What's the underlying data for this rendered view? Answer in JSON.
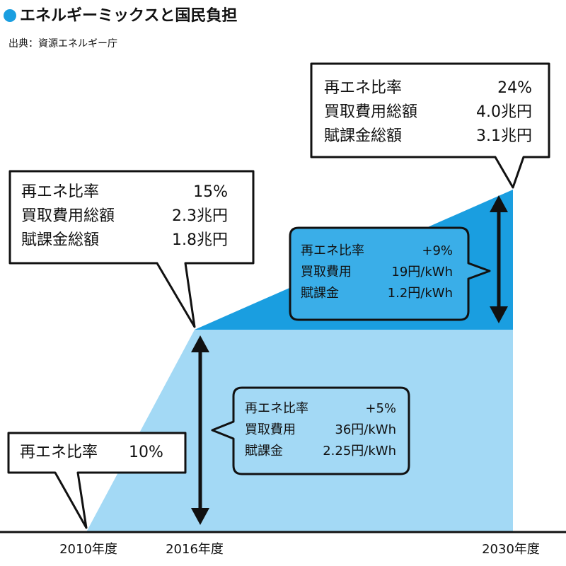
{
  "header": {
    "title": "エネルギーミックスと国民負担",
    "source": "出典：資源エネルギー庁"
  },
  "axis_labels": [
    "2010年度",
    "2016年度",
    "2030年度"
  ],
  "callouts": [
    {
      "rows": [
        [
          "再エネ比率",
          "10%"
        ]
      ]
    },
    {
      "rows": [
        [
          "再エネ比率",
          "15%"
        ],
        [
          "買取費用総額",
          "2.3兆円"
        ],
        [
          "賦課金総額",
          "1.8兆円"
        ]
      ]
    },
    {
      "rows": [
        [
          "再エネ比率",
          "24%"
        ],
        [
          "買取費用総額",
          "4.0兆円"
        ],
        [
          "賦課金総額",
          "3.1兆円"
        ]
      ]
    },
    {
      "rows": [
        [
          "再エネ比率",
          "+9%"
        ],
        [
          "買取費用",
          "19円/kWh"
        ],
        [
          "賦課金",
          "1.2円/kWh"
        ]
      ]
    },
    {
      "rows": [
        [
          "再エネ比率",
          "+5%"
        ],
        [
          "買取費用",
          "36円/kWh"
        ],
        [
          "賦課金",
          "2.25円/kWh"
        ]
      ]
    }
  ]
}
